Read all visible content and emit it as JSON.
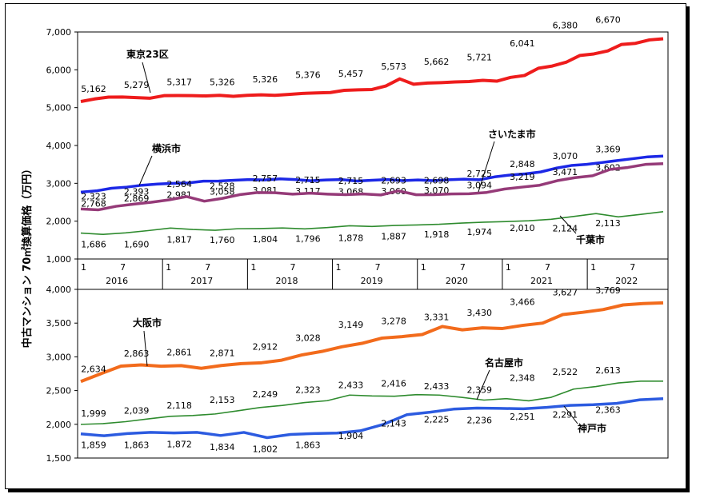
{
  "ylabel": "中古マンション 70㎡換算価格（万円）",
  "x_axis": {
    "month_ticks": [
      "1",
      "7",
      "1",
      "7",
      "1",
      "7",
      "1",
      "7",
      "1",
      "7",
      "1",
      "7",
      "1",
      "7"
    ],
    "years": [
      "2016",
      "2017",
      "2018",
      "2019",
      "2020",
      "2021",
      "2022"
    ]
  },
  "chart_data": [
    {
      "type": "line",
      "name": "top-panel",
      "ylim": [
        1000,
        7000
      ],
      "yticks": [
        "1,000",
        "2,000",
        "3,000",
        "4,000",
        "5,000",
        "6,000",
        "7,000"
      ],
      "ytick_values": [
        1000,
        2000,
        3000,
        4000,
        5000,
        6000,
        7000
      ],
      "x_range": [
        "2016-01",
        "2022-05"
      ],
      "series": [
        {
          "name": "東京23区",
          "color": "#ee1c1c",
          "labels": [
            "5,162",
            "5,279",
            "5,317",
            "5,326",
            "5,326",
            "5,376",
            "5,457",
            "5,573",
            "5,662",
            "5,721",
            "6,041",
            "6,380",
            "6,670"
          ],
          "values": [
            5162,
            5230,
            5279,
            5280,
            5265,
            5250,
            5317,
            5320,
            5318,
            5310,
            5326,
            5300,
            5326,
            5340,
            5326,
            5350,
            5376,
            5390,
            5400,
            5457,
            5470,
            5480,
            5573,
            5760,
            5620,
            5650,
            5662,
            5680,
            5690,
            5721,
            5700,
            5800,
            5850,
            6041,
            6100,
            6200,
            6380,
            6420,
            6500,
            6670,
            6700,
            6790,
            6820
          ]
        },
        {
          "name": "横浜市",
          "color": "#1c28e6",
          "labels": [
            "2,768",
            "2,869",
            "2,981",
            "3,058",
            "3,081",
            "3,117",
            "3,068",
            "3,060",
            "3,070",
            "3,094",
            "3,219",
            "3,471",
            "3,602"
          ],
          "values": [
            2768,
            2800,
            2869,
            2900,
            2950,
            2981,
            3000,
            3010,
            3058,
            3060,
            3081,
            3100,
            3090,
            3117,
            3100,
            3068,
            3090,
            3100,
            3060,
            3080,
            3100,
            3070,
            3090,
            3070,
            3094,
            3110,
            3094,
            3170,
            3219,
            3250,
            3300,
            3400,
            3471,
            3500,
            3550,
            3602,
            3650,
            3700,
            3720
          ]
        },
        {
          "name": "さいたま市",
          "color": "#953a78",
          "labels": [
            "2,323",
            "2,393",
            "2,564",
            "2,528",
            "2,757",
            "2,715",
            "2,715",
            "2,693",
            "2,698",
            "2,725",
            "2,848",
            "3,070",
            "3,369"
          ],
          "values": [
            2323,
            2300,
            2393,
            2450,
            2500,
            2564,
            2650,
            2528,
            2600,
            2700,
            2757,
            2750,
            2715,
            2740,
            2715,
            2700,
            2720,
            2693,
            2800,
            2698,
            2700,
            2720,
            2725,
            2760,
            2848,
            2900,
            2950,
            3070,
            3150,
            3200,
            3369,
            3420,
            3500,
            3520
          ]
        },
        {
          "name": "千葉市",
          "color": "#2e8b2e",
          "labels": [
            "1,686",
            "1,690",
            "1,817",
            "1,760",
            "1,804",
            "1,796",
            "1,878",
            "1,887",
            "1,918",
            "1,974",
            "2,010",
            "2,124",
            "2,113"
          ],
          "values": [
            1686,
            1650,
            1690,
            1750,
            1817,
            1780,
            1760,
            1800,
            1804,
            1820,
            1796,
            1830,
            1878,
            1860,
            1887,
            1900,
            1918,
            1950,
            1974,
            1990,
            2010,
            2050,
            2124,
            2200,
            2113,
            2180,
            2250
          ]
        }
      ]
    },
    {
      "type": "line",
      "name": "bottom-panel",
      "ylim": [
        1500,
        4000
      ],
      "yticks": [
        "1,500",
        "2,000",
        "2,500",
        "3,000",
        "3,500",
        "4,000"
      ],
      "ytick_values": [
        1500,
        2000,
        2500,
        3000,
        3500,
        4000
      ],
      "x_range": [
        "2016-01",
        "2022-05"
      ],
      "series": [
        {
          "name": "大阪市",
          "color": "#f26b1c",
          "labels": [
            "2,634",
            "2,863",
            "2,861",
            "2,871",
            "2,912",
            "3,028",
            "3,149",
            "3,278",
            "3,331",
            "3,430",
            "3,466",
            "3,627",
            "3,769"
          ],
          "values": [
            2634,
            2750,
            2863,
            2880,
            2861,
            2870,
            2830,
            2871,
            2900,
            2912,
            2950,
            3028,
            3080,
            3149,
            3200,
            3278,
            3300,
            3331,
            3450,
            3400,
            3430,
            3420,
            3466,
            3500,
            3627,
            3660,
            3700,
            3769,
            3790,
            3800
          ]
        },
        {
          "name": "名古屋市",
          "color": "#2e8b2e",
          "labels": [
            "1,999",
            "2,039",
            "2,118",
            "2,153",
            "2,249",
            "2,323",
            "2,433",
            "2,416",
            "2,433",
            "2,359",
            "2,348",
            "2,522",
            "2,613"
          ],
          "values": [
            1999,
            2010,
            2039,
            2080,
            2118,
            2130,
            2153,
            2200,
            2249,
            2280,
            2323,
            2350,
            2433,
            2420,
            2416,
            2440,
            2433,
            2400,
            2359,
            2380,
            2348,
            2400,
            2522,
            2560,
            2613,
            2640,
            2640
          ]
        },
        {
          "name": "神戸市",
          "color": "#2c5be0",
          "labels": [
            "1,859",
            "1,863",
            "1,872",
            "1,834",
            "1,802",
            "1,863",
            "1,904",
            "2,143",
            "2,225",
            "2,236",
            "2,251",
            "2,291",
            "2,363"
          ],
          "values": [
            1859,
            1830,
            1863,
            1880,
            1872,
            1880,
            1834,
            1880,
            1802,
            1850,
            1863,
            1870,
            1904,
            2000,
            2143,
            2180,
            2225,
            2240,
            2236,
            2230,
            2251,
            2280,
            2291,
            2310,
            2363,
            2380
          ]
        }
      ]
    }
  ]
}
